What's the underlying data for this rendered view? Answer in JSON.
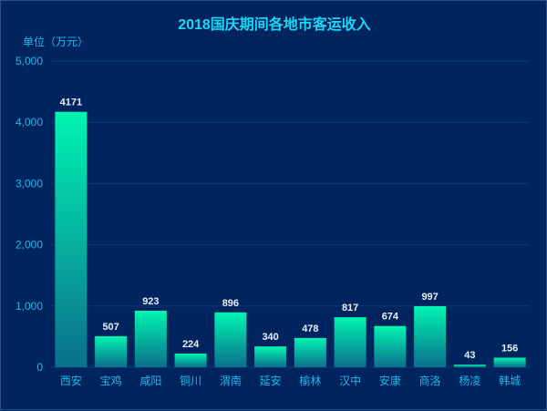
{
  "chart_data": {
    "type": "bar",
    "title": "2018国庆期间各地市客运收入",
    "ylabel": "单位（万元）",
    "xlabel": "",
    "categories": [
      "西安",
      "宝鸡",
      "咸阳",
      "铜川",
      "渭南",
      "延安",
      "榆林",
      "汉中",
      "安康",
      "商洛",
      "杨凌",
      "韩城"
    ],
    "values": [
      4171,
      507,
      923,
      224,
      896,
      340,
      478,
      817,
      674,
      997,
      43,
      156
    ],
    "ylim": [
      0,
      5000
    ],
    "yticks": [
      0,
      1000,
      2000,
      3000,
      4000,
      5000
    ],
    "ytick_labels": [
      "0",
      "1,000",
      "2,000",
      "3,000",
      "4,000",
      "5,000"
    ],
    "grid": true,
    "colors": {
      "bar_top": "#00f5b2",
      "bar_bottom": "#0b6f8c",
      "title": "#19d6f5",
      "axis_text": "#1fb8e8",
      "label": "#e8eef8",
      "grid": "#0b3a7a"
    }
  }
}
